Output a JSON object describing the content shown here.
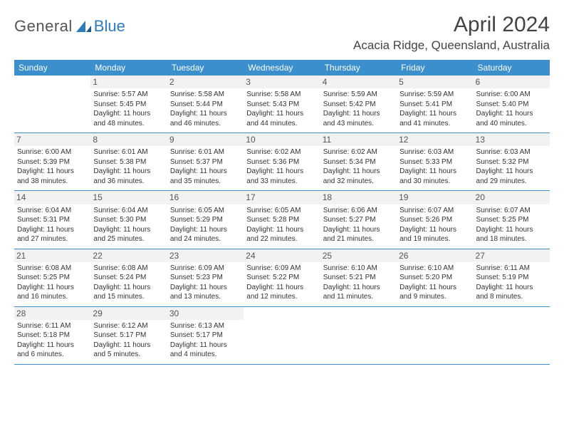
{
  "brand": {
    "part1": "General",
    "part2": "Blue"
  },
  "title": "April 2024",
  "location": "Acacia Ridge, Queensland, Australia",
  "colors": {
    "header_bg": "#3b8fcd",
    "header_text": "#ffffff",
    "text": "#333333",
    "daynum_bg": "#f2f2f2",
    "rule": "#3b8fcd",
    "brand_blue": "#2b7bbd"
  },
  "typography": {
    "title_fontsize": 30,
    "location_fontsize": 17,
    "weekday_fontsize": 12,
    "daynum_fontsize": 12,
    "body_fontsize": 10
  },
  "weekdays": [
    "Sunday",
    "Monday",
    "Tuesday",
    "Wednesday",
    "Thursday",
    "Friday",
    "Saturday"
  ],
  "weeks": [
    [
      {
        "n": "",
        "sunrise": "",
        "sunset": "",
        "day": ""
      },
      {
        "n": "1",
        "sunrise": "Sunrise: 5:57 AM",
        "sunset": "Sunset: 5:45 PM",
        "day": "Daylight: 11 hours and 48 minutes."
      },
      {
        "n": "2",
        "sunrise": "Sunrise: 5:58 AM",
        "sunset": "Sunset: 5:44 PM",
        "day": "Daylight: 11 hours and 46 minutes."
      },
      {
        "n": "3",
        "sunrise": "Sunrise: 5:58 AM",
        "sunset": "Sunset: 5:43 PM",
        "day": "Daylight: 11 hours and 44 minutes."
      },
      {
        "n": "4",
        "sunrise": "Sunrise: 5:59 AM",
        "sunset": "Sunset: 5:42 PM",
        "day": "Daylight: 11 hours and 43 minutes."
      },
      {
        "n": "5",
        "sunrise": "Sunrise: 5:59 AM",
        "sunset": "Sunset: 5:41 PM",
        "day": "Daylight: 11 hours and 41 minutes."
      },
      {
        "n": "6",
        "sunrise": "Sunrise: 6:00 AM",
        "sunset": "Sunset: 5:40 PM",
        "day": "Daylight: 11 hours and 40 minutes."
      }
    ],
    [
      {
        "n": "7",
        "sunrise": "Sunrise: 6:00 AM",
        "sunset": "Sunset: 5:39 PM",
        "day": "Daylight: 11 hours and 38 minutes."
      },
      {
        "n": "8",
        "sunrise": "Sunrise: 6:01 AM",
        "sunset": "Sunset: 5:38 PM",
        "day": "Daylight: 11 hours and 36 minutes."
      },
      {
        "n": "9",
        "sunrise": "Sunrise: 6:01 AM",
        "sunset": "Sunset: 5:37 PM",
        "day": "Daylight: 11 hours and 35 minutes."
      },
      {
        "n": "10",
        "sunrise": "Sunrise: 6:02 AM",
        "sunset": "Sunset: 5:36 PM",
        "day": "Daylight: 11 hours and 33 minutes."
      },
      {
        "n": "11",
        "sunrise": "Sunrise: 6:02 AM",
        "sunset": "Sunset: 5:34 PM",
        "day": "Daylight: 11 hours and 32 minutes."
      },
      {
        "n": "12",
        "sunrise": "Sunrise: 6:03 AM",
        "sunset": "Sunset: 5:33 PM",
        "day": "Daylight: 11 hours and 30 minutes."
      },
      {
        "n": "13",
        "sunrise": "Sunrise: 6:03 AM",
        "sunset": "Sunset: 5:32 PM",
        "day": "Daylight: 11 hours and 29 minutes."
      }
    ],
    [
      {
        "n": "14",
        "sunrise": "Sunrise: 6:04 AM",
        "sunset": "Sunset: 5:31 PM",
        "day": "Daylight: 11 hours and 27 minutes."
      },
      {
        "n": "15",
        "sunrise": "Sunrise: 6:04 AM",
        "sunset": "Sunset: 5:30 PM",
        "day": "Daylight: 11 hours and 25 minutes."
      },
      {
        "n": "16",
        "sunrise": "Sunrise: 6:05 AM",
        "sunset": "Sunset: 5:29 PM",
        "day": "Daylight: 11 hours and 24 minutes."
      },
      {
        "n": "17",
        "sunrise": "Sunrise: 6:05 AM",
        "sunset": "Sunset: 5:28 PM",
        "day": "Daylight: 11 hours and 22 minutes."
      },
      {
        "n": "18",
        "sunrise": "Sunrise: 6:06 AM",
        "sunset": "Sunset: 5:27 PM",
        "day": "Daylight: 11 hours and 21 minutes."
      },
      {
        "n": "19",
        "sunrise": "Sunrise: 6:07 AM",
        "sunset": "Sunset: 5:26 PM",
        "day": "Daylight: 11 hours and 19 minutes."
      },
      {
        "n": "20",
        "sunrise": "Sunrise: 6:07 AM",
        "sunset": "Sunset: 5:25 PM",
        "day": "Daylight: 11 hours and 18 minutes."
      }
    ],
    [
      {
        "n": "21",
        "sunrise": "Sunrise: 6:08 AM",
        "sunset": "Sunset: 5:25 PM",
        "day": "Daylight: 11 hours and 16 minutes."
      },
      {
        "n": "22",
        "sunrise": "Sunrise: 6:08 AM",
        "sunset": "Sunset: 5:24 PM",
        "day": "Daylight: 11 hours and 15 minutes."
      },
      {
        "n": "23",
        "sunrise": "Sunrise: 6:09 AM",
        "sunset": "Sunset: 5:23 PM",
        "day": "Daylight: 11 hours and 13 minutes."
      },
      {
        "n": "24",
        "sunrise": "Sunrise: 6:09 AM",
        "sunset": "Sunset: 5:22 PM",
        "day": "Daylight: 11 hours and 12 minutes."
      },
      {
        "n": "25",
        "sunrise": "Sunrise: 6:10 AM",
        "sunset": "Sunset: 5:21 PM",
        "day": "Daylight: 11 hours and 11 minutes."
      },
      {
        "n": "26",
        "sunrise": "Sunrise: 6:10 AM",
        "sunset": "Sunset: 5:20 PM",
        "day": "Daylight: 11 hours and 9 minutes."
      },
      {
        "n": "27",
        "sunrise": "Sunrise: 6:11 AM",
        "sunset": "Sunset: 5:19 PM",
        "day": "Daylight: 11 hours and 8 minutes."
      }
    ],
    [
      {
        "n": "28",
        "sunrise": "Sunrise: 6:11 AM",
        "sunset": "Sunset: 5:18 PM",
        "day": "Daylight: 11 hours and 6 minutes."
      },
      {
        "n": "29",
        "sunrise": "Sunrise: 6:12 AM",
        "sunset": "Sunset: 5:17 PM",
        "day": "Daylight: 11 hours and 5 minutes."
      },
      {
        "n": "30",
        "sunrise": "Sunrise: 6:13 AM",
        "sunset": "Sunset: 5:17 PM",
        "day": "Daylight: 11 hours and 4 minutes."
      },
      {
        "n": "",
        "sunrise": "",
        "sunset": "",
        "day": ""
      },
      {
        "n": "",
        "sunrise": "",
        "sunset": "",
        "day": ""
      },
      {
        "n": "",
        "sunrise": "",
        "sunset": "",
        "day": ""
      },
      {
        "n": "",
        "sunrise": "",
        "sunset": "",
        "day": ""
      }
    ]
  ]
}
